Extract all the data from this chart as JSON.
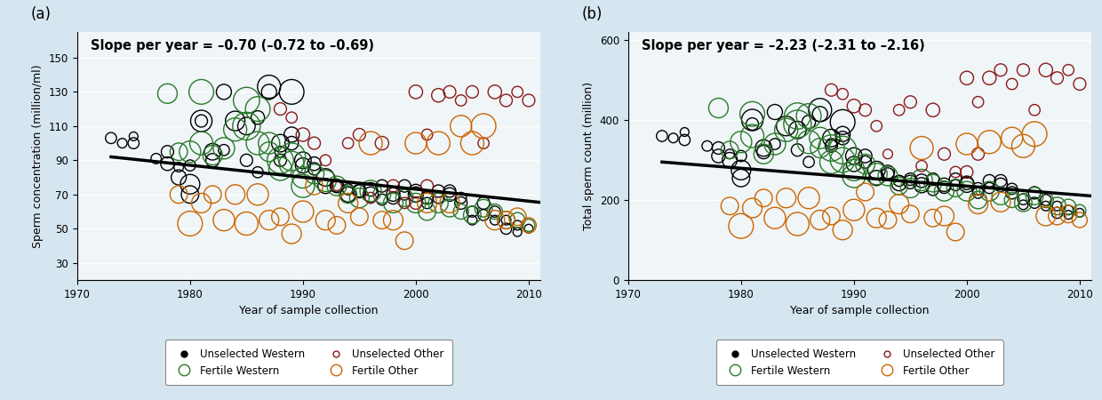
{
  "title_a": "Slope per year = –0.70 (–0.72 to –0.69)",
  "title_b": "Slope per year = –2.23 (–2.31 to –2.16)",
  "xlabel": "Year of sample collection",
  "ylabel_a": "Sperm concentration (million/ml)",
  "ylabel_b": "Total sperm count (million)",
  "xlim": [
    1970,
    2011
  ],
  "ylim_a": [
    20,
    165
  ],
  "ylim_b": [
    0,
    620
  ],
  "yticks_a": [
    30,
    50,
    70,
    90,
    110,
    130,
    150
  ],
  "yticks_b": [
    0,
    200,
    400,
    600
  ],
  "xticks": [
    1970,
    1980,
    1990,
    2000,
    2010
  ],
  "slope_a": -0.7,
  "intercept_a_year0": 1973,
  "intercept_a_val": 92.0,
  "slope_b": -2.23,
  "intercept_b_year0": 1973,
  "intercept_b_val": 295.0,
  "bg_color": "#d6e6f0",
  "plot_bg_color": "#f0f5f8",
  "colors": {
    "unselected_western": "#000000",
    "fertile_western": "#2a7a2a",
    "unselected_other": "#8b1a1a",
    "fertile_other": "#cc6600"
  },
  "panel_a_data": {
    "unselected_western": {
      "x": [
        1973,
        1974,
        1975,
        1975,
        1977,
        1978,
        1978,
        1979,
        1979,
        1980,
        1980,
        1980,
        1981,
        1981,
        1982,
        1982,
        1983,
        1983,
        1984,
        1985,
        1985,
        1986,
        1986,
        1987,
        1987,
        1988,
        1988,
        1988,
        1989,
        1989,
        1989,
        1990,
        1990,
        1991,
        1991,
        1992,
        1992,
        1993,
        1993,
        1994,
        1994,
        1995,
        1995,
        1996,
        1996,
        1997,
        1997,
        1998,
        1998,
        1999,
        1999,
        2000,
        2000,
        2001,
        2001,
        2002,
        2002,
        2003,
        2003,
        2004,
        2004,
        2005,
        2005,
        2006,
        2006,
        2007,
        2007,
        2008,
        2008,
        2009,
        2009,
        2010
      ],
      "y": [
        103,
        100,
        104,
        100,
        91,
        95,
        88,
        86,
        80,
        70,
        87,
        76,
        113,
        113,
        90,
        95,
        96,
        130,
        113,
        90,
        110,
        83,
        115,
        133,
        130,
        100,
        90,
        95,
        130,
        105,
        100,
        87,
        90,
        85,
        88,
        80,
        75,
        75,
        75,
        70,
        73,
        72,
        72,
        70,
        73,
        67,
        75,
        70,
        68,
        75,
        70,
        72,
        70,
        68,
        65,
        72,
        68,
        70,
        72,
        68,
        65,
        60,
        55,
        58,
        65,
        55,
        60,
        55,
        50,
        48,
        52,
        50
      ],
      "size": [
        80,
        60,
        50,
        80,
        70,
        100,
        120,
        60,
        150,
        200,
        80,
        250,
        300,
        100,
        120,
        180,
        80,
        150,
        250,
        100,
        200,
        80,
        120,
        350,
        150,
        200,
        100,
        80,
        400,
        150,
        120,
        150,
        180,
        100,
        120,
        200,
        150,
        100,
        120,
        150,
        80,
        120,
        100,
        150,
        120,
        80,
        100,
        120,
        100,
        100,
        80,
        120,
        150,
        100,
        80,
        100,
        80,
        120,
        100,
        80,
        100,
        80,
        60,
        80,
        100,
        60,
        80,
        60,
        80,
        50,
        60,
        50
      ]
    },
    "fertile_western": {
      "x": [
        1978,
        1979,
        1980,
        1981,
        1981,
        1982,
        1983,
        1984,
        1985,
        1985,
        1986,
        1986,
        1987,
        1987,
        1988,
        1988,
        1989,
        1989,
        1990,
        1990,
        1991,
        1992,
        1993,
        1994,
        1995,
        1996,
        1997,
        1998,
        1999,
        2000,
        2001,
        2002,
        2003,
        2004,
        2005,
        2006,
        2007,
        2008,
        2009,
        2010
      ],
      "y": [
        129,
        95,
        95,
        100,
        130,
        93,
        97,
        108,
        125,
        110,
        120,
        100,
        100,
        95,
        90,
        85,
        92,
        88,
        80,
        75,
        82,
        78,
        75,
        70,
        68,
        72,
        70,
        65,
        68,
        65,
        60,
        65,
        62,
        60,
        58,
        62,
        60,
        55,
        55,
        52
      ],
      "size": [
        250,
        200,
        300,
        350,
        400,
        250,
        300,
        350,
        450,
        500,
        400,
        350,
        300,
        250,
        450,
        350,
        500,
        400,
        300,
        350,
        250,
        300,
        250,
        200,
        250,
        300,
        200,
        250,
        200,
        250,
        200,
        250,
        200,
        150,
        200,
        200,
        150,
        200,
        150,
        100
      ]
    },
    "unselected_other": {
      "x": [
        1988,
        1989,
        1990,
        1991,
        1992,
        1993,
        1994,
        1995,
        1996,
        1997,
        1998,
        1999,
        2000,
        2000,
        2001,
        2001,
        2002,
        2003,
        2004,
        2005,
        2006,
        2007,
        2008,
        2009,
        2010
      ],
      "y": [
        120,
        115,
        105,
        100,
        90,
        75,
        100,
        105,
        68,
        100,
        75,
        65,
        65,
        130,
        105,
        75,
        128,
        130,
        125,
        130,
        100,
        130,
        125,
        130,
        125
      ],
      "size": [
        100,
        80,
        120,
        100,
        80,
        60,
        80,
        100,
        80,
        120,
        100,
        80,
        100,
        120,
        80,
        100,
        120,
        100,
        80,
        100,
        80,
        120,
        100,
        80,
        100
      ]
    },
    "fertile_other": {
      "x": [
        1979,
        1980,
        1981,
        1982,
        1983,
        1984,
        1985,
        1986,
        1987,
        1988,
        1989,
        1990,
        1991,
        1992,
        1993,
        1994,
        1995,
        1996,
        1997,
        1998,
        1999,
        2000,
        2001,
        2002,
        2003,
        2004,
        2005,
        2006,
        2007,
        2008,
        2009,
        2010
      ],
      "y": [
        70,
        53,
        65,
        70,
        55,
        70,
        53,
        70,
        55,
        57,
        47,
        60,
        75,
        55,
        52,
        65,
        57,
        100,
        55,
        55,
        43,
        100,
        65,
        100,
        65,
        110,
        100,
        110,
        55,
        55,
        57,
        52
      ],
      "size": [
        200,
        400,
        250,
        200,
        300,
        250,
        350,
        300,
        250,
        200,
        250,
        300,
        200,
        250,
        200,
        250,
        200,
        350,
        200,
        250,
        200,
        300,
        250,
        350,
        250,
        300,
        350,
        400,
        250,
        200,
        200,
        150
      ]
    }
  },
  "panel_b_data": {
    "unselected_western": {
      "x": [
        1973,
        1974,
        1975,
        1975,
        1977,
        1978,
        1978,
        1979,
        1979,
        1980,
        1980,
        1980,
        1981,
        1981,
        1982,
        1982,
        1983,
        1983,
        1984,
        1985,
        1985,
        1986,
        1986,
        1987,
        1987,
        1988,
        1988,
        1988,
        1989,
        1989,
        1989,
        1990,
        1990,
        1991,
        1991,
        1992,
        1992,
        1993,
        1993,
        1994,
        1994,
        1995,
        1995,
        1996,
        1996,
        1997,
        1997,
        1998,
        1998,
        1999,
        1999,
        2000,
        2000,
        2001,
        2001,
        2002,
        2002,
        2003,
        2003,
        2004,
        2004,
        2005,
        2005,
        2006,
        2006,
        2007,
        2007,
        2008,
        2008,
        2009,
        2009,
        2010
      ],
      "y": [
        360,
        355,
        370,
        350,
        335,
        330,
        310,
        315,
        300,
        255,
        310,
        275,
        400,
        390,
        320,
        330,
        340,
        420,
        385,
        325,
        375,
        295,
        395,
        425,
        415,
        355,
        335,
        340,
        395,
        365,
        355,
        290,
        310,
        295,
        310,
        275,
        255,
        265,
        270,
        242,
        248,
        245,
        252,
        237,
        248,
        225,
        252,
        238,
        232,
        252,
        237,
        243,
        238,
        228,
        218,
        248,
        230,
        238,
        248,
        228,
        218,
        202,
        188,
        193,
        218,
        185,
        200,
        185,
        168,
        163,
        175,
        168
      ],
      "size": [
        80,
        60,
        50,
        80,
        70,
        100,
        120,
        60,
        150,
        200,
        80,
        250,
        300,
        100,
        120,
        180,
        80,
        150,
        250,
        100,
        200,
        80,
        120,
        350,
        150,
        200,
        100,
        80,
        400,
        150,
        120,
        150,
        180,
        100,
        120,
        200,
        150,
        100,
        120,
        150,
        80,
        120,
        100,
        150,
        120,
        80,
        100,
        120,
        100,
        100,
        80,
        120,
        150,
        100,
        80,
        100,
        80,
        120,
        100,
        80,
        100,
        80,
        60,
        80,
        100,
        60,
        80,
        60,
        80,
        50,
        60,
        50
      ]
    },
    "fertile_western": {
      "x": [
        1978,
        1979,
        1980,
        1981,
        1981,
        1982,
        1983,
        1984,
        1985,
        1985,
        1986,
        1986,
        1987,
        1987,
        1988,
        1988,
        1989,
        1989,
        1990,
        1990,
        1991,
        1992,
        1993,
        1994,
        1995,
        1996,
        1997,
        1998,
        1999,
        2000,
        2001,
        2002,
        2003,
        2004,
        2005,
        2006,
        2007,
        2008,
        2009,
        2010
      ],
      "y": [
        430,
        325,
        345,
        360,
        415,
        315,
        340,
        375,
        410,
        390,
        410,
        345,
        355,
        330,
        330,
        295,
        325,
        300,
        275,
        260,
        290,
        265,
        260,
        235,
        230,
        250,
        242,
        222,
        230,
        222,
        200,
        222,
        210,
        200,
        193,
        210,
        200,
        185,
        183,
        173
      ],
      "size": [
        250,
        200,
        300,
        350,
        400,
        250,
        300,
        350,
        450,
        500,
        400,
        350,
        300,
        250,
        450,
        350,
        500,
        400,
        300,
        350,
        250,
        300,
        250,
        200,
        250,
        300,
        200,
        250,
        200,
        250,
        200,
        250,
        200,
        150,
        200,
        200,
        150,
        200,
        150,
        100
      ]
    },
    "unselected_other": {
      "x": [
        1988,
        1989,
        1990,
        1991,
        1992,
        1993,
        1994,
        1995,
        1996,
        1997,
        1998,
        1999,
        2000,
        2000,
        2001,
        2001,
        2002,
        2003,
        2004,
        2005,
        2006,
        2007,
        2008,
        2009,
        2010
      ],
      "y": [
        475,
        465,
        435,
        425,
        385,
        315,
        425,
        445,
        285,
        425,
        315,
        270,
        270,
        505,
        445,
        315,
        505,
        525,
        490,
        525,
        425,
        525,
        505,
        525,
        490
      ],
      "size": [
        100,
        80,
        120,
        100,
        80,
        60,
        80,
        100,
        80,
        120,
        100,
        80,
        100,
        120,
        80,
        100,
        120,
        100,
        80,
        100,
        80,
        120,
        100,
        80,
        100
      ]
    },
    "fertile_other": {
      "x": [
        1979,
        1980,
        1981,
        1982,
        1983,
        1984,
        1985,
        1986,
        1987,
        1988,
        1989,
        1990,
        1991,
        1992,
        1993,
        1994,
        1995,
        1996,
        1997,
        1998,
        1999,
        2000,
        2001,
        2002,
        2003,
        2004,
        2005,
        2006,
        2007,
        2008,
        2009,
        2010
      ],
      "y": [
        185,
        135,
        180,
        205,
        155,
        205,
        140,
        205,
        150,
        160,
        125,
        175,
        220,
        155,
        150,
        190,
        165,
        330,
        155,
        160,
        120,
        340,
        190,
        345,
        195,
        355,
        335,
        365,
        160,
        160,
        165,
        150
      ],
      "size": [
        200,
        400,
        250,
        200,
        300,
        250,
        350,
        300,
        250,
        200,
        250,
        300,
        200,
        250,
        200,
        250,
        200,
        350,
        200,
        250,
        200,
        300,
        250,
        350,
        250,
        300,
        350,
        400,
        250,
        200,
        200,
        150
      ]
    }
  }
}
